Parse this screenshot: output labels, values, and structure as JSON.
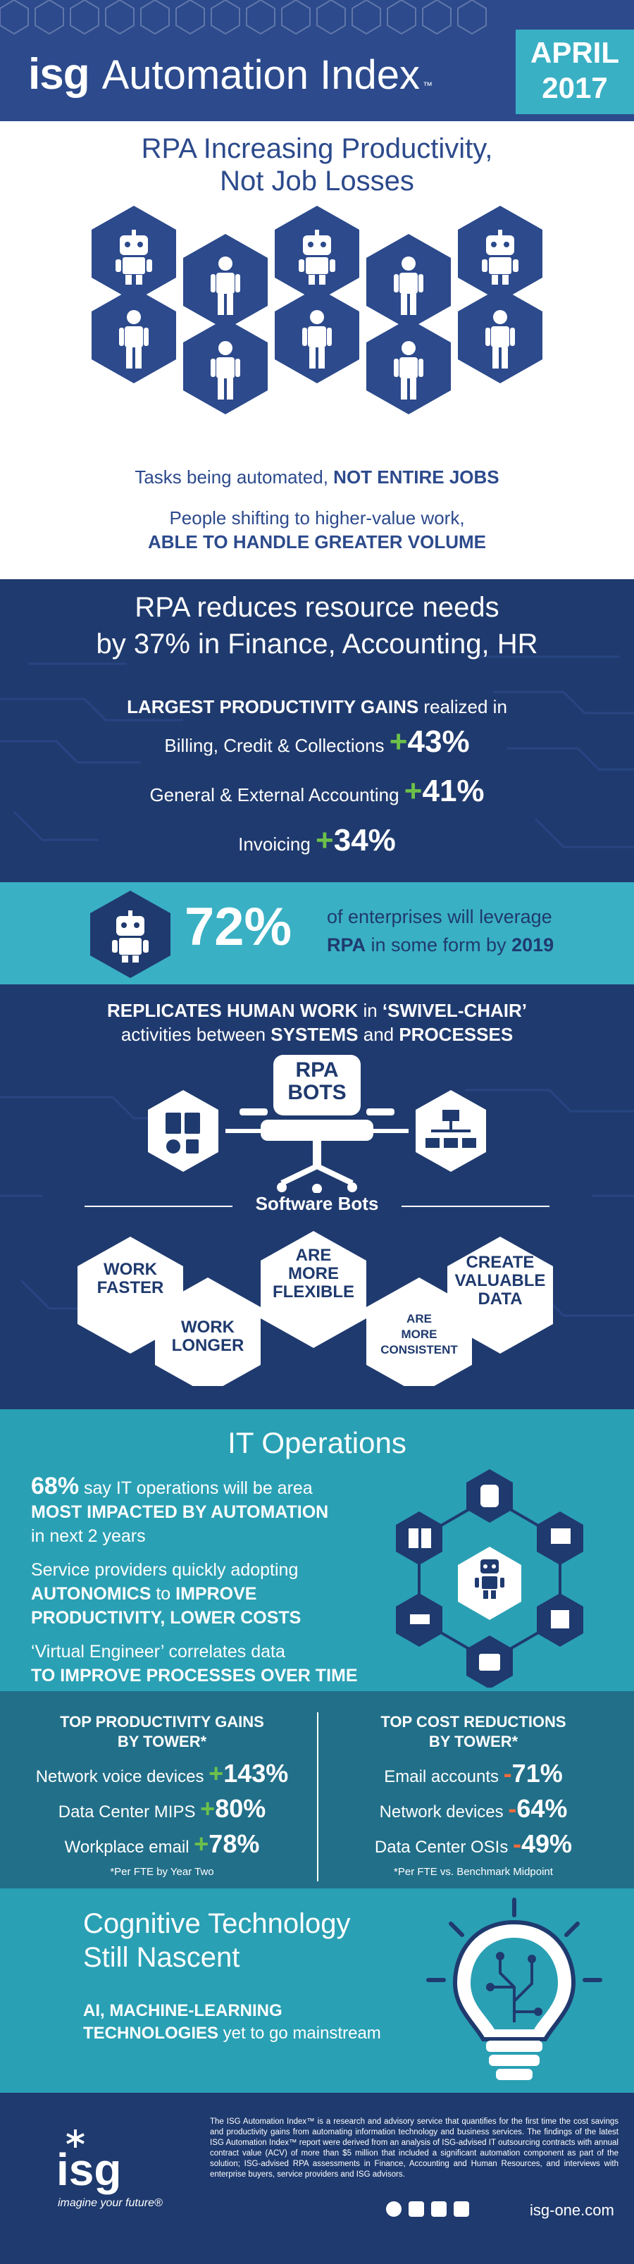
{
  "header": {
    "logo": "isg",
    "title": "Automation Index",
    "tm": "™",
    "month": "APRIL",
    "year": "2017"
  },
  "intro": {
    "title_line1": "RPA Increasing Productivity,",
    "title_line2": "Not Job Losses",
    "line1_pre": "Tasks being automated, ",
    "line1_bold": "NOT ENTIRE JOBS",
    "line2": "People shifting to higher-value work,",
    "line3": "ABLE TO HANDLE GREATER VOLUME"
  },
  "resource": {
    "title_line1": "RPA reduces resource needs",
    "title_line2": "by 37% in Finance, Accounting, HR",
    "gains_bold": "LARGEST PRODUCTIVITY GAINS",
    "gains_rest": " realized in",
    "items": [
      {
        "label": "Billing, Credit & Collections",
        "sign": "+",
        "value": "43%"
      },
      {
        "label": "General & External Accounting",
        "sign": "+",
        "value": "41%"
      },
      {
        "label": "Invoicing",
        "sign": "+",
        "value": "34%"
      }
    ]
  },
  "leverage": {
    "percent": "72%",
    "line1": "of enterprises will leverage",
    "rpa": "RPA",
    "mid": " in some form by ",
    "year": "2019"
  },
  "process": {
    "line1_bold": "REPLICATES HUMAN WORK",
    "line1_mid": " in ",
    "line1_bold2": "‘SWIVEL-CHAIR’",
    "line2_pre": "activities between ",
    "line2_b1": "SYSTEMS",
    "line2_mid": " and ",
    "line2_b2": "PROCESSES",
    "rpa_label1": "RPA",
    "rpa_label2": "BOTS",
    "software_bots": "Software Bots",
    "bots": [
      {
        "line1": "WORK",
        "line2": "FASTER"
      },
      {
        "line1": "WORK",
        "line2": "LONGER"
      },
      {
        "line1": "ARE",
        "line2": "MORE",
        "line3": "FLEXIBLE"
      },
      {
        "line1": "ARE",
        "line2": "MORE",
        "line3": "CONSISTENT"
      },
      {
        "line1": "CREATE",
        "line2": "VALUABLE",
        "line3": "DATA"
      }
    ]
  },
  "itops": {
    "title": "IT Operations",
    "p1_pct": "68%",
    "p1_rest": " say IT operations will be area",
    "p1_bold": "MOST IMPACTED BY AUTOMATION",
    "p1_tail": "in next 2 years",
    "p2_line1": "Service providers quickly adopting",
    "p2_b1": "AUTONOMICS",
    "p2_mid": " to ",
    "p2_b2": "IMPROVE",
    "p2_b3": "PRODUCTIVITY, LOWER COSTS",
    "p3_line1": "‘Virtual Engineer’ correlates data",
    "p3_bold": "TO IMPROVE PROCESSES OVER TIME"
  },
  "gains": {
    "left_title1": "TOP PRODUCTIVITY GAINS",
    "left_title2": "BY TOWER*",
    "left_items": [
      {
        "label": "Network voice devices",
        "sign": "+",
        "value": "143%"
      },
      {
        "label": "Data Center MIPS",
        "sign": "+",
        "value": "80%"
      },
      {
        "label": "Workplace email",
        "sign": "+",
        "value": "78%"
      }
    ],
    "left_note": "*Per FTE by Year Two",
    "right_title1": "TOP COST REDUCTIONS",
    "right_title2": "BY TOWER*",
    "right_items": [
      {
        "label": "Email accounts",
        "sign": "-",
        "value": "71%"
      },
      {
        "label": "Network devices",
        "sign": "-",
        "value": "64%"
      },
      {
        "label": "Data Center OSIs",
        "sign": "-",
        "value": "49%"
      }
    ],
    "right_note": "*Per FTE vs. Benchmark Midpoint"
  },
  "cognitive": {
    "title1": "Cognitive Technology",
    "title2": "Still Nascent",
    "b1": "AI, MACHINE-LEARNING",
    "b2": "TECHNOLOGIES",
    "rest": " yet to go mainstream"
  },
  "footer": {
    "logo": "isg",
    "tagline": "imagine your future",
    "tm": "®",
    "body": "The ISG Automation Index™ is a research and advisory service that quantifies for the first time the cost savings and productivity gains from automating information technology and business services. The findings of the latest ISG Automation Index™ report were derived from an analysis of ISG-advised IT outsourcing contracts with annual contract value (ACV) of more than $5 million that included a significant automation component as part of the solution; ISG-advised RPA assessments in Finance, Accounting and Human Resources, and interviews with enterprise buyers, service providers and ISG advisors.",
    "website": "isg-one.com"
  },
  "colors": {
    "navy": "#1f3a6e",
    "blue": "#2c4a8c",
    "teal": "#2aa0b4",
    "light_teal": "#3ab0c4",
    "green": "#6cc04a",
    "orange": "#f26b3a"
  }
}
